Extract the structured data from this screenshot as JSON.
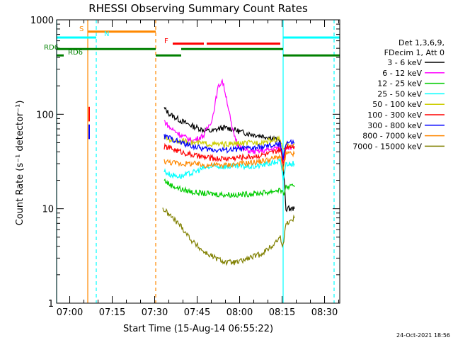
{
  "chart_data": {
    "type": "line",
    "title": "RHESSI Observing Summary Count Rates",
    "xlabel": "Start Time (15-Aug-14 06:55:22)",
    "ylabel": "Count Rate (s⁻¹ detector⁻¹)",
    "ylog": true,
    "ylim": [
      1,
      1000
    ],
    "xlim_minutes_after_start": [
      0,
      100
    ],
    "x_ticks": [
      {
        "label": "07:00",
        "min": 4.63
      },
      {
        "label": "07:15",
        "min": 19.63
      },
      {
        "label": "07:30",
        "min": 34.63
      },
      {
        "label": "07:45",
        "min": 49.63
      },
      {
        "label": "08:00",
        "min": 64.63
      },
      {
        "label": "08:15",
        "min": 79.63
      },
      {
        "label": "08:30",
        "min": 94.63
      }
    ],
    "y_ticks": [
      {
        "label": "1",
        "value": 1
      },
      {
        "label": "10",
        "value": 10
      },
      {
        "label": "100",
        "value": 100
      },
      {
        "label": "1000",
        "value": 1000
      }
    ],
    "legend": {
      "header": [
        "Det 1,3,6,9,",
        "FDecim 1, Att 0"
      ],
      "position": "right"
    },
    "series": [
      {
        "name": "3 - 6 keV",
        "color": "#000000",
        "points": [
          [
            38,
            115
          ],
          [
            40,
            100
          ],
          [
            44,
            85
          ],
          [
            48,
            75
          ],
          [
            52,
            68
          ],
          [
            55,
            66
          ],
          [
            57,
            70
          ],
          [
            59,
            72
          ],
          [
            62,
            70
          ],
          [
            65,
            65
          ],
          [
            68,
            62
          ],
          [
            71,
            60
          ],
          [
            74,
            58
          ],
          [
            77,
            55
          ],
          [
            79,
            52
          ],
          [
            80,
            30
          ],
          [
            81,
            10
          ],
          [
            84,
            10
          ]
        ]
      },
      {
        "name": "6 - 12 keV",
        "color": "#ff00ff",
        "points": [
          [
            38,
            85
          ],
          [
            40,
            72
          ],
          [
            44,
            60
          ],
          [
            48,
            52
          ],
          [
            52,
            60
          ],
          [
            55,
            90
          ],
          [
            57,
            190
          ],
          [
            58.5,
            230
          ],
          [
            60,
            150
          ],
          [
            62,
            70
          ],
          [
            64,
            48
          ],
          [
            66,
            42
          ],
          [
            70,
            40
          ],
          [
            75,
            42
          ],
          [
            79,
            45
          ],
          [
            80,
            30
          ],
          [
            81,
            45
          ],
          [
            84,
            45
          ]
        ]
      },
      {
        "name": "12 - 25 keV",
        "color": "#00cc00",
        "points": [
          [
            38,
            20
          ],
          [
            40,
            18
          ],
          [
            44,
            16
          ],
          [
            48,
            15
          ],
          [
            52,
            14.5
          ],
          [
            58,
            14.2
          ],
          [
            64,
            14
          ],
          [
            70,
            14.5
          ],
          [
            75,
            15
          ],
          [
            79,
            16
          ],
          [
            80,
            14
          ],
          [
            81,
            17
          ],
          [
            84,
            17
          ]
        ]
      },
      {
        "name": "25 - 50 keV",
        "color": "#00ffff",
        "points": [
          [
            38,
            25
          ],
          [
            40,
            23
          ],
          [
            44,
            22
          ],
          [
            48,
            24
          ],
          [
            52,
            27
          ],
          [
            56,
            28
          ],
          [
            60,
            28
          ],
          [
            65,
            28
          ],
          [
            70,
            28
          ],
          [
            75,
            30
          ],
          [
            79,
            32
          ],
          [
            80,
            20
          ],
          [
            81,
            30
          ],
          [
            84,
            30
          ]
        ]
      },
      {
        "name": "50 - 100 keV",
        "color": "#cccc00",
        "points": [
          [
            38,
            57
          ],
          [
            40,
            54
          ],
          [
            44,
            52
          ],
          [
            48,
            50
          ],
          [
            52,
            49
          ],
          [
            56,
            48
          ],
          [
            60,
            48
          ],
          [
            65,
            49
          ],
          [
            70,
            50
          ],
          [
            75,
            52
          ],
          [
            79,
            55
          ],
          [
            80,
            40
          ],
          [
            81,
            48
          ],
          [
            84,
            48
          ]
        ]
      },
      {
        "name": "100 - 300 keV",
        "color": "#ff0000",
        "points": [
          [
            38,
            45
          ],
          [
            40,
            44
          ],
          [
            44,
            40
          ],
          [
            48,
            37
          ],
          [
            52,
            35
          ],
          [
            56,
            34
          ],
          [
            60,
            34
          ],
          [
            65,
            35
          ],
          [
            70,
            36
          ],
          [
            75,
            38
          ],
          [
            79,
            42
          ],
          [
            80,
            30
          ],
          [
            81,
            46
          ],
          [
            84,
            46
          ]
        ]
      },
      {
        "name": "300 - 800 keV",
        "color": "#0000ff",
        "points": [
          [
            38,
            58
          ],
          [
            40,
            56
          ],
          [
            44,
            50
          ],
          [
            48,
            46
          ],
          [
            52,
            43
          ],
          [
            56,
            42
          ],
          [
            60,
            42
          ],
          [
            65,
            43
          ],
          [
            70,
            44
          ],
          [
            75,
            46
          ],
          [
            79,
            48
          ],
          [
            80,
            35
          ],
          [
            81,
            50
          ],
          [
            84,
            50
          ]
        ]
      },
      {
        "name": "800 - 7000 keV",
        "color": "#ff8800",
        "points": [
          [
            38,
            32
          ],
          [
            40,
            31
          ],
          [
            44,
            30
          ],
          [
            48,
            30
          ],
          [
            52,
            29
          ],
          [
            56,
            29
          ],
          [
            60,
            29
          ],
          [
            65,
            30
          ],
          [
            70,
            31
          ],
          [
            75,
            33
          ],
          [
            79,
            36
          ],
          [
            80,
            25
          ],
          [
            81,
            38
          ],
          [
            84,
            38
          ]
        ]
      },
      {
        "name": "7000 - 15000 keV",
        "color": "#808000",
        "points": [
          [
            37.5,
            10
          ],
          [
            40,
            8.5
          ],
          [
            44,
            6.5
          ],
          [
            48,
            4.5
          ],
          [
            52,
            3.5
          ],
          [
            56,
            3
          ],
          [
            60,
            2.7
          ],
          [
            64,
            2.7
          ],
          [
            68,
            3
          ],
          [
            72,
            3.3
          ],
          [
            76,
            4
          ],
          [
            79,
            5
          ],
          [
            80,
            4
          ],
          [
            81,
            7
          ],
          [
            84,
            8
          ]
        ]
      }
    ],
    "segments_legend": {
      "labels": [
        "S",
        "N",
        "F",
        "RD6",
        "RD6"
      ],
      "colors": [
        "#ff8800",
        "#00ffff",
        "#ff0000",
        "#008000",
        "#008000"
      ]
    },
    "status_bars": [
      {
        "label": "S",
        "color": "#ff8800",
        "value": 750,
        "ranges": [
          [
            11,
            35
          ]
        ]
      },
      {
        "label": "N",
        "color": "#00ffff",
        "value": 650,
        "ranges": [
          [
            0,
            14
          ],
          [
            80,
            100
          ]
        ]
      },
      {
        "label": "F",
        "color": "#ff0000",
        "value": 560,
        "ranges": [
          [
            41,
            52
          ],
          [
            53,
            79
          ]
        ]
      },
      {
        "label": "RD6",
        "color": "#008000",
        "value": 490,
        "ranges": [
          [
            0,
            35
          ],
          [
            44,
            80
          ]
        ]
      },
      {
        "label": "RD6",
        "color": "#008000",
        "value": 420,
        "ranges": [
          [
            0,
            2.5
          ],
          [
            35,
            44
          ],
          [
            80,
            100
          ]
        ]
      }
    ],
    "vertical_lines": [
      {
        "color": "#00ffff",
        "style": "solid",
        "min": 0
      },
      {
        "color": "#ff8800",
        "style": "solid",
        "min": 11
      },
      {
        "color": "#00ffff",
        "style": "dashed",
        "min": 14
      },
      {
        "color": "#ff8800",
        "style": "dashed",
        "min": 35
      },
      {
        "color": "#00ffff",
        "style": "solid",
        "min": 80
      },
      {
        "color": "#00ffff",
        "style": "dashed",
        "min": 98
      }
    ],
    "spikes": [
      {
        "min": 11,
        "color": "#ff0000",
        "value": 120
      },
      {
        "min": 11,
        "color": "#0000ff",
        "value": 78
      }
    ]
  },
  "footer_timestamp": "24-Oct-2021 18:56"
}
